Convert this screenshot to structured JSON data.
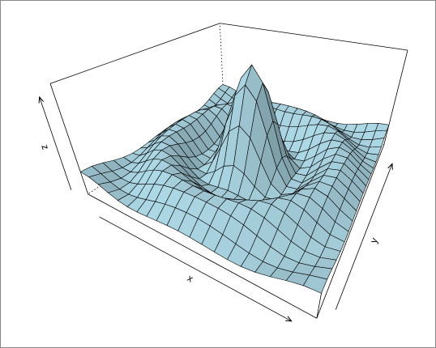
{
  "chart_data": {
    "type": "surface",
    "color": "#add8e6",
    "xlabel": "x",
    "ylabel": "y",
    "zlabel": "z",
    "xlim": [
      -10,
      10
    ],
    "ylim": [
      -10,
      10
    ],
    "zlim": [
      -0.217,
      1
    ],
    "x": [
      -10,
      -9,
      -8,
      -7,
      -6,
      -5,
      -4,
      -3,
      -2,
      -1,
      0,
      1,
      2,
      3,
      4,
      5,
      6,
      7,
      8,
      9,
      10
    ],
    "y": [
      -10,
      -9,
      -8,
      -7,
      -6,
      -5,
      -4,
      -3,
      -2,
      -1,
      0,
      1,
      2,
      3,
      4,
      5,
      6,
      7,
      8,
      9,
      10
    ],
    "z": [
      [
        0.071,
        0.058,
        0.019,
        -0.029,
        -0.067,
        -0.088,
        -0.09,
        -0.081,
        -0.068,
        -0.058,
        -0.054,
        -0.058,
        -0.068,
        -0.081,
        -0.09,
        -0.088,
        -0.067,
        -0.029,
        0.019,
        0.058,
        0.071
      ],
      [
        0.058,
        0.013,
        -0.042,
        -0.081,
        -0.091,
        -0.074,
        -0.042,
        -0.007,
        0.022,
        0.04,
        0.046,
        0.04,
        0.022,
        -0.007,
        -0.042,
        -0.074,
        -0.091,
        -0.081,
        -0.042,
        0.013,
        0.058
      ],
      [
        0.019,
        -0.042,
        -0.084,
        -0.088,
        -0.054,
        -0.001,
        0.052,
        0.09,
        0.112,
        0.121,
        0.124,
        0.121,
        0.112,
        0.09,
        0.052,
        -0.001,
        -0.054,
        -0.088,
        -0.084,
        -0.042,
        0.019
      ],
      [
        -0.029,
        -0.081,
        -0.088,
        -0.046,
        0.022,
        0.085,
        0.121,
        0.128,
        0.115,
        0.1,
        0.094,
        0.1,
        0.115,
        0.128,
        0.121,
        0.085,
        0.022,
        -0.046,
        -0.088,
        -0.081,
        -0.029
      ],
      [
        -0.067,
        -0.091,
        -0.054,
        0.022,
        0.095,
        0.128,
        0.111,
        0.061,
        0.007,
        -0.033,
        -0.047,
        -0.033,
        0.007,
        0.061,
        0.111,
        0.128,
        0.095,
        0.022,
        -0.054,
        -0.091,
        -0.067
      ],
      [
        -0.088,
        -0.074,
        -0.001,
        0.085,
        0.128,
        0.1,
        0.019,
        -0.075,
        -0.145,
        -0.182,
        -0.192,
        -0.182,
        -0.145,
        -0.075,
        0.019,
        0.1,
        0.128,
        0.085,
        -0.001,
        -0.074,
        -0.088
      ],
      [
        -0.09,
        -0.042,
        0.052,
        0.121,
        0.111,
        0.019,
        -0.104,
        -0.192,
        -0.217,
        -0.201,
        -0.189,
        -0.201,
        -0.217,
        -0.192,
        -0.104,
        0.019,
        0.111,
        0.121,
        0.052,
        -0.042,
        -0.09
      ],
      [
        -0.081,
        -0.007,
        0.09,
        0.128,
        0.061,
        -0.075,
        -0.192,
        -0.21,
        -0.124,
        -0.007,
        0.047,
        -0.007,
        -0.124,
        -0.21,
        -0.192,
        -0.075,
        0.061,
        0.128,
        0.09,
        -0.007,
        -0.081
      ],
      [
        -0.068,
        0.022,
        0.112,
        0.115,
        0.007,
        -0.145,
        -0.217,
        -0.124,
        0.109,
        0.352,
        0.455,
        0.352,
        0.109,
        -0.124,
        -0.217,
        -0.145,
        0.007,
        0.115,
        0.112,
        0.022,
        -0.068
      ],
      [
        -0.058,
        0.04,
        0.121,
        0.1,
        -0.033,
        -0.182,
        -0.201,
        -0.007,
        0.352,
        0.698,
        0.841,
        0.698,
        0.352,
        -0.007,
        -0.201,
        -0.182,
        -0.033,
        0.1,
        0.121,
        0.04,
        -0.058
      ],
      [
        -0.054,
        0.046,
        0.124,
        0.094,
        -0.047,
        -0.192,
        -0.189,
        0.047,
        0.455,
        0.841,
        1,
        0.841,
        0.455,
        0.047,
        -0.189,
        -0.192,
        -0.047,
        0.094,
        0.124,
        0.046,
        -0.054
      ],
      [
        -0.058,
        0.04,
        0.121,
        0.1,
        -0.033,
        -0.182,
        -0.201,
        -0.007,
        0.352,
        0.698,
        0.841,
        0.698,
        0.352,
        -0.007,
        -0.201,
        -0.182,
        -0.033,
        0.1,
        0.121,
        0.04,
        -0.058
      ],
      [
        -0.068,
        0.022,
        0.112,
        0.115,
        0.007,
        -0.145,
        -0.217,
        -0.124,
        0.109,
        0.352,
        0.455,
        0.352,
        0.109,
        -0.124,
        -0.217,
        -0.145,
        0.007,
        0.115,
        0.112,
        0.022,
        -0.068
      ],
      [
        -0.081,
        -0.007,
        0.09,
        0.128,
        0.061,
        -0.075,
        -0.192,
        -0.21,
        -0.124,
        -0.007,
        0.047,
        -0.007,
        -0.124,
        -0.21,
        -0.192,
        -0.075,
        0.061,
        0.128,
        0.09,
        -0.007,
        -0.081
      ],
      [
        -0.09,
        -0.042,
        0.052,
        0.121,
        0.111,
        0.019,
        -0.104,
        -0.192,
        -0.217,
        -0.201,
        -0.189,
        -0.201,
        -0.217,
        -0.192,
        -0.104,
        0.019,
        0.111,
        0.121,
        0.052,
        -0.042,
        -0.09
      ],
      [
        -0.088,
        -0.074,
        -0.001,
        0.085,
        0.128,
        0.1,
        0.019,
        -0.075,
        -0.145,
        -0.182,
        -0.192,
        -0.182,
        -0.145,
        -0.075,
        0.019,
        0.1,
        0.128,
        0.085,
        -0.001,
        -0.074,
        -0.088
      ],
      [
        -0.067,
        -0.091,
        -0.054,
        0.022,
        0.095,
        0.128,
        0.111,
        0.061,
        0.007,
        -0.033,
        -0.047,
        -0.033,
        0.007,
        0.061,
        0.111,
        0.128,
        0.095,
        0.022,
        -0.054,
        -0.091,
        -0.067
      ],
      [
        -0.029,
        -0.081,
        -0.088,
        -0.046,
        0.022,
        0.085,
        0.121,
        0.128,
        0.115,
        0.1,
        0.094,
        0.1,
        0.115,
        0.128,
        0.121,
        0.085,
        0.022,
        -0.046,
        -0.088,
        -0.081,
        -0.029
      ],
      [
        0.019,
        -0.042,
        -0.084,
        -0.088,
        -0.054,
        -0.001,
        0.052,
        0.09,
        0.112,
        0.121,
        0.124,
        0.121,
        0.112,
        0.09,
        0.052,
        -0.001,
        -0.054,
        -0.088,
        -0.084,
        -0.042,
        0.019
      ],
      [
        0.058,
        0.013,
        -0.042,
        -0.081,
        -0.091,
        -0.074,
        -0.042,
        -0.007,
        0.022,
        0.04,
        0.046,
        0.04,
        0.022,
        -0.007,
        -0.042,
        -0.074,
        -0.091,
        -0.081,
        -0.042,
        0.013,
        0.058
      ],
      [
        0.071,
        0.058,
        0.019,
        -0.029,
        -0.067,
        -0.088,
        -0.09,
        -0.081,
        -0.068,
        -0.058,
        -0.054,
        -0.058,
        -0.068,
        -0.081,
        -0.09,
        -0.088,
        -0.067,
        -0.029,
        0.019,
        0.058,
        0.071
      ]
    ]
  }
}
